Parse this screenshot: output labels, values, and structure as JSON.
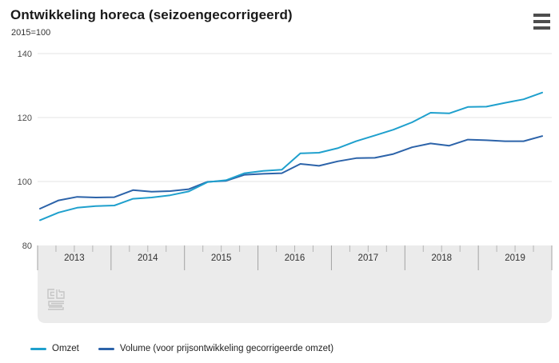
{
  "header": {
    "title": "Ontwikkeling horeca (seizoengecorrigeerd)",
    "subtitle": "2015=100",
    "menu_icon": "hamburger-icon"
  },
  "chart_data": {
    "type": "line",
    "title": "Ontwikkeling horeca (seizoengecorrigeerd)",
    "unit": "2015=100",
    "x_frequency": "quarterly",
    "x_start": "2013 Q1",
    "x_end": "2019 Q4",
    "years": [
      "2013",
      "2014",
      "2015",
      "2016",
      "2017",
      "2018",
      "2019"
    ],
    "quarters_per_year": 4,
    "yticks": [
      140,
      120,
      100,
      80
    ],
    "ylim": [
      80,
      140
    ],
    "grid": true,
    "legend_position": "bottom",
    "watermark": "cbs-logo",
    "series": [
      {
        "name": "Omzet",
        "color": "#1fa0cd",
        "values": [
          87.9,
          90.3,
          91.8,
          92.3,
          92.5,
          94.6,
          95.0,
          95.7,
          96.9,
          99.8,
          100.4,
          102.6,
          103.3,
          103.7,
          108.8,
          109.0,
          110.4,
          112.6,
          114.4,
          116.2,
          118.5,
          121.5,
          121.3,
          123.3,
          123.4,
          124.6,
          125.7,
          127.8
        ]
      },
      {
        "name": "Volume (voor prijsontwikkeling gecorrigeerde omzet)",
        "color": "#2c63a9",
        "values": [
          91.5,
          94.1,
          95.2,
          95.0,
          95.1,
          97.3,
          96.8,
          97.0,
          97.6,
          99.9,
          100.2,
          102.1,
          102.4,
          102.6,
          105.5,
          104.9,
          106.3,
          107.3,
          107.4,
          108.6,
          110.7,
          111.9,
          111.2,
          113.1,
          112.9,
          112.6,
          112.6,
          114.2
        ]
      }
    ]
  }
}
